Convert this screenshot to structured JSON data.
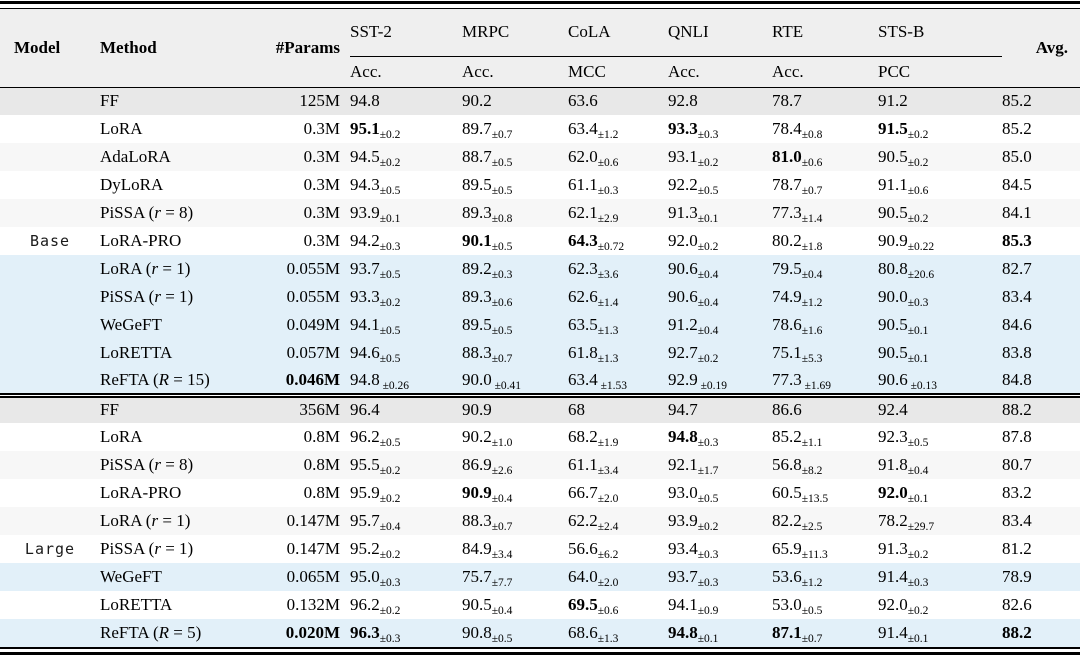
{
  "colors": {
    "row_gray": "#e8e8e8",
    "row_faint": "#f7f7f7",
    "row_white": "#ffffff",
    "row_blue": "#e2f0f9",
    "header_bg": "#efefef",
    "rule": "#000000"
  },
  "table": {
    "header": {
      "model": "Model",
      "method": "Method",
      "params": "#Params",
      "avg": "Avg.",
      "benchmarks": [
        {
          "key": "sst2",
          "label": "SST-2",
          "metric": "Acc."
        },
        {
          "key": "mrpc",
          "label": "MRPC",
          "metric": "Acc."
        },
        {
          "key": "cola",
          "label": "CoLA",
          "metric": "MCC"
        },
        {
          "key": "qnli",
          "label": "QNLI",
          "metric": "Acc."
        },
        {
          "key": "rte",
          "label": "RTE",
          "metric": "Acc."
        },
        {
          "key": "stsb",
          "label": "STS-B",
          "metric": "PCC"
        }
      ]
    },
    "sections": [
      {
        "model": "Base",
        "label_row": 5,
        "rows": [
          {
            "method": [
              {
                "t": "FF"
              }
            ],
            "shade": "gray",
            "params": {
              "v": "125M"
            },
            "cells": [
              {
                "v": "94.8"
              },
              {
                "v": "90.2"
              },
              {
                "v": "63.6"
              },
              {
                "v": "92.8"
              },
              {
                "v": "78.7"
              },
              {
                "v": "91.2"
              },
              {
                "v": "85.2"
              }
            ]
          },
          {
            "method": [
              {
                "t": "LoRA"
              }
            ],
            "shade": "white",
            "params": {
              "v": "0.3M"
            },
            "cells": [
              {
                "v": "95.1",
                "b": true,
                "s": "±0.2"
              },
              {
                "v": "89.7",
                "s": "±0.7"
              },
              {
                "v": "63.4",
                "s": "±1.2"
              },
              {
                "v": "93.3",
                "b": true,
                "s": "±0.3"
              },
              {
                "v": "78.4",
                "s": "±0.8"
              },
              {
                "v": "91.5",
                "b": true,
                "s": "±0.2"
              },
              {
                "v": "85.2"
              }
            ]
          },
          {
            "method": [
              {
                "t": "AdaLoRA"
              }
            ],
            "shade": "faint",
            "params": {
              "v": "0.3M"
            },
            "cells": [
              {
                "v": "94.5",
                "s": "±0.2"
              },
              {
                "v": "88.7",
                "s": "±0.5"
              },
              {
                "v": "62.0",
                "s": "±0.6"
              },
              {
                "v": "93.1",
                "s": "±0.2"
              },
              {
                "v": "81.0",
                "b": true,
                "s": "±0.6"
              },
              {
                "v": "90.5",
                "s": "±0.2"
              },
              {
                "v": "85.0"
              }
            ]
          },
          {
            "method": [
              {
                "t": "DyLoRA"
              }
            ],
            "shade": "white",
            "params": {
              "v": "0.3M"
            },
            "cells": [
              {
                "v": "94.3",
                "s": "±0.5"
              },
              {
                "v": "89.5",
                "s": "±0.5"
              },
              {
                "v": "61.1",
                "s": "±0.3"
              },
              {
                "v": "92.2",
                "s": "±0.5"
              },
              {
                "v": "78.7",
                "s": "±0.7"
              },
              {
                "v": "91.1",
                "s": "±0.6"
              },
              {
                "v": "84.5"
              }
            ]
          },
          {
            "method": [
              {
                "t": "PiSSA ("
              },
              {
                "t": "r",
                "i": true
              },
              {
                "t": " = 8)"
              }
            ],
            "shade": "faint",
            "params": {
              "v": "0.3M"
            },
            "cells": [
              {
                "v": "93.9",
                "s": "±0.1"
              },
              {
                "v": "89.3",
                "s": "±0.8"
              },
              {
                "v": "62.1",
                "s": "±2.9"
              },
              {
                "v": "91.3",
                "s": "±0.1"
              },
              {
                "v": "77.3",
                "s": "±1.4"
              },
              {
                "v": "90.5",
                "s": "±0.2"
              },
              {
                "v": "84.1"
              }
            ]
          },
          {
            "method": [
              {
                "t": "LoRA-PRO"
              }
            ],
            "shade": "white",
            "params": {
              "v": "0.3M"
            },
            "cells": [
              {
                "v": "94.2",
                "s": "±0.3"
              },
              {
                "v": "90.1",
                "b": true,
                "s": "±0.5"
              },
              {
                "v": "64.3",
                "b": true,
                "s": "±0.72"
              },
              {
                "v": "92.0",
                "s": "±0.2"
              },
              {
                "v": "80.2",
                "s": "±1.8"
              },
              {
                "v": "90.9",
                "s": "±0.22"
              },
              {
                "v": "85.3",
                "b": true
              }
            ]
          },
          {
            "method": [
              {
                "t": "LoRA ("
              },
              {
                "t": "r",
                "i": true
              },
              {
                "t": " = 1)"
              }
            ],
            "shade": "blue",
            "params": {
              "v": "0.055M"
            },
            "cells": [
              {
                "v": "93.7",
                "s": "±0.5"
              },
              {
                "v": "89.2",
                "s": "±0.3"
              },
              {
                "v": "62.3",
                "s": "±3.6"
              },
              {
                "v": "90.6",
                "s": "±0.4"
              },
              {
                "v": "79.5",
                "s": "±0.4"
              },
              {
                "v": "80.8",
                "s": "±20.6"
              },
              {
                "v": "82.7"
              }
            ]
          },
          {
            "method": [
              {
                "t": "PiSSA ("
              },
              {
                "t": "r",
                "i": true
              },
              {
                "t": " = 1)"
              }
            ],
            "shade": "blue",
            "params": {
              "v": "0.055M"
            },
            "cells": [
              {
                "v": "93.3",
                "s": "±0.2"
              },
              {
                "v": "89.3",
                "s": "±0.6"
              },
              {
                "v": "62.6",
                "s": "±1.4"
              },
              {
                "v": "90.6",
                "s": "±0.4"
              },
              {
                "v": "74.9",
                "s": "±1.2"
              },
              {
                "v": "90.0",
                "s": "±0.3"
              },
              {
                "v": "83.4"
              }
            ]
          },
          {
            "method": [
              {
                "t": "WeGeFT"
              }
            ],
            "shade": "blue",
            "params": {
              "v": "0.049M"
            },
            "cells": [
              {
                "v": "94.1",
                "s": "±0.5"
              },
              {
                "v": "89.5",
                "s": "±0.5"
              },
              {
                "v": "63.5",
                "s": "±1.3"
              },
              {
                "v": "91.2",
                "s": "±0.4"
              },
              {
                "v": "78.6",
                "s": "±1.6"
              },
              {
                "v": "90.5",
                "s": "±0.1"
              },
              {
                "v": "84.6"
              }
            ]
          },
          {
            "method": [
              {
                "t": "LoRETTA"
              }
            ],
            "shade": "blue",
            "params": {
              "v": "0.057M"
            },
            "cells": [
              {
                "v": "94.6",
                "s": "±0.5"
              },
              {
                "v": "88.3",
                "s": "±0.7"
              },
              {
                "v": "61.8",
                "s": "±1.3"
              },
              {
                "v": "92.7",
                "s": "±0.2"
              },
              {
                "v": "75.1",
                "s": "±5.3"
              },
              {
                "v": "90.5",
                "s": "±0.1"
              },
              {
                "v": "83.8"
              }
            ]
          },
          {
            "method": [
              {
                "t": "ReFTA ("
              },
              {
                "t": "R",
                "i": true
              },
              {
                "t": " = 15)"
              }
            ],
            "shade": "blue",
            "params": {
              "v": "0.046M",
              "b": true
            },
            "cells": [
              {
                "v": "94.8",
                "s": " ±0.26"
              },
              {
                "v": "90.0",
                "s": " ±0.41"
              },
              {
                "v": "63.4",
                "s": " ±1.53"
              },
              {
                "v": "92.9",
                "s": " ±0.19"
              },
              {
                "v": "77.3",
                "s": " ±1.69"
              },
              {
                "v": "90.6",
                "s": " ±0.13"
              },
              {
                "v": "84.8"
              }
            ]
          }
        ]
      },
      {
        "model": "Large",
        "label_row": 5,
        "rows": [
          {
            "method": [
              {
                "t": "FF"
              }
            ],
            "shade": "gray",
            "params": {
              "v": "356M"
            },
            "cells": [
              {
                "v": "96.4"
              },
              {
                "v": "90.9"
              },
              {
                "v": "68"
              },
              {
                "v": "94.7"
              },
              {
                "v": "86.6"
              },
              {
                "v": "92.4"
              },
              {
                "v": "88.2"
              }
            ]
          },
          {
            "method": [
              {
                "t": "LoRA"
              }
            ],
            "shade": "white",
            "params": {
              "v": "0.8M"
            },
            "cells": [
              {
                "v": "96.2",
                "s": "±0.5"
              },
              {
                "v": "90.2",
                "s": "±1.0"
              },
              {
                "v": "68.2",
                "s": "±1.9"
              },
              {
                "v": "94.8",
                "b": true,
                "s": "±0.3"
              },
              {
                "v": "85.2",
                "s": "±1.1"
              },
              {
                "v": "92.3",
                "s": "±0.5"
              },
              {
                "v": "87.8"
              }
            ]
          },
          {
            "method": [
              {
                "t": "PiSSA ("
              },
              {
                "t": "r",
                "i": true
              },
              {
                "t": " = 8)"
              }
            ],
            "shade": "faint",
            "params": {
              "v": "0.8M"
            },
            "cells": [
              {
                "v": "95.5",
                "s": "±0.2"
              },
              {
                "v": "86.9",
                "s": "±2.6"
              },
              {
                "v": "61.1",
                "s": "±3.4"
              },
              {
                "v": "92.1",
                "s": "±1.7"
              },
              {
                "v": "56.8",
                "s": "±8.2"
              },
              {
                "v": "91.8",
                "s": "±0.4"
              },
              {
                "v": "80.7"
              }
            ]
          },
          {
            "method": [
              {
                "t": "LoRA-PRO"
              }
            ],
            "shade": "white",
            "params": {
              "v": "0.8M"
            },
            "cells": [
              {
                "v": "95.9",
                "s": "±0.2"
              },
              {
                "v": "90.9",
                "b": true,
                "s": "±0.4"
              },
              {
                "v": "66.7",
                "s": "±2.0"
              },
              {
                "v": "93.0",
                "s": "±0.5"
              },
              {
                "v": "60.5",
                "s": "±13.5"
              },
              {
                "v": "92.0",
                "b": true,
                "s": "±0.1"
              },
              {
                "v": "83.2"
              }
            ]
          },
          {
            "method": [
              {
                "t": "LoRA ("
              },
              {
                "t": "r",
                "i": true
              },
              {
                "t": " = 1)"
              }
            ],
            "shade": "faint",
            "params": {
              "v": "0.147M"
            },
            "cells": [
              {
                "v": "95.7",
                "s": "±0.4"
              },
              {
                "v": "88.3",
                "s": "±0.7"
              },
              {
                "v": "62.2",
                "s": "±2.4"
              },
              {
                "v": "93.9",
                "s": "±0.2"
              },
              {
                "v": "82.2",
                "s": "±2.5"
              },
              {
                "v": "78.2",
                "s": "±29.7"
              },
              {
                "v": "83.4"
              }
            ]
          },
          {
            "method": [
              {
                "t": "PiSSA ("
              },
              {
                "t": "r",
                "i": true
              },
              {
                "t": " = 1)"
              }
            ],
            "shade": "white",
            "params": {
              "v": "0.147M"
            },
            "cells": [
              {
                "v": "95.2",
                "s": "±0.2"
              },
              {
                "v": "84.9",
                "s": "±3.4"
              },
              {
                "v": "56.6",
                "s": "±6.2"
              },
              {
                "v": "93.4",
                "s": "±0.3"
              },
              {
                "v": "65.9",
                "s": "±11.3"
              },
              {
                "v": "91.3",
                "s": "±0.2"
              },
              {
                "v": "81.2"
              }
            ]
          },
          {
            "method": [
              {
                "t": "WeGeFT"
              }
            ],
            "shade": "blue",
            "params": {
              "v": "0.065M"
            },
            "cells": [
              {
                "v": "95.0",
                "s": "±0.3"
              },
              {
                "v": "75.7",
                "s": "±7.7"
              },
              {
                "v": "64.0",
                "s": "±2.0"
              },
              {
                "v": "93.7",
                "s": "±0.3"
              },
              {
                "v": "53.6",
                "s": "±1.2"
              },
              {
                "v": "91.4",
                "s": "±0.3"
              },
              {
                "v": "78.9"
              }
            ]
          },
          {
            "method": [
              {
                "t": "LoRETTA"
              }
            ],
            "shade": "white",
            "params": {
              "v": "0.132M"
            },
            "cells": [
              {
                "v": "96.2",
                "s": "±0.2"
              },
              {
                "v": "90.5",
                "s": "±0.4"
              },
              {
                "v": "69.5",
                "b": true,
                "s": "±0.6"
              },
              {
                "v": "94.1",
                "s": "±0.9"
              },
              {
                "v": "53.0",
                "s": "±0.5"
              },
              {
                "v": "92.0",
                "s": "±0.2"
              },
              {
                "v": "82.6"
              }
            ]
          },
          {
            "method": [
              {
                "t": "ReFTA ("
              },
              {
                "t": "R",
                "i": true
              },
              {
                "t": " = 5)"
              }
            ],
            "shade": "blue",
            "params": {
              "v": "0.020M",
              "b": true
            },
            "cells": [
              {
                "v": "96.3",
                "b": true,
                "s": "±0.3"
              },
              {
                "v": "90.8",
                "s": "±0.5"
              },
              {
                "v": "68.6",
                "s": "±1.3"
              },
              {
                "v": "94.8",
                "b": true,
                "s": "±0.1"
              },
              {
                "v": "87.1",
                "b": true,
                "s": "±0.7"
              },
              {
                "v": "91.4",
                "s": "±0.1"
              },
              {
                "v": "88.2",
                "b": true
              }
            ]
          }
        ]
      }
    ]
  }
}
